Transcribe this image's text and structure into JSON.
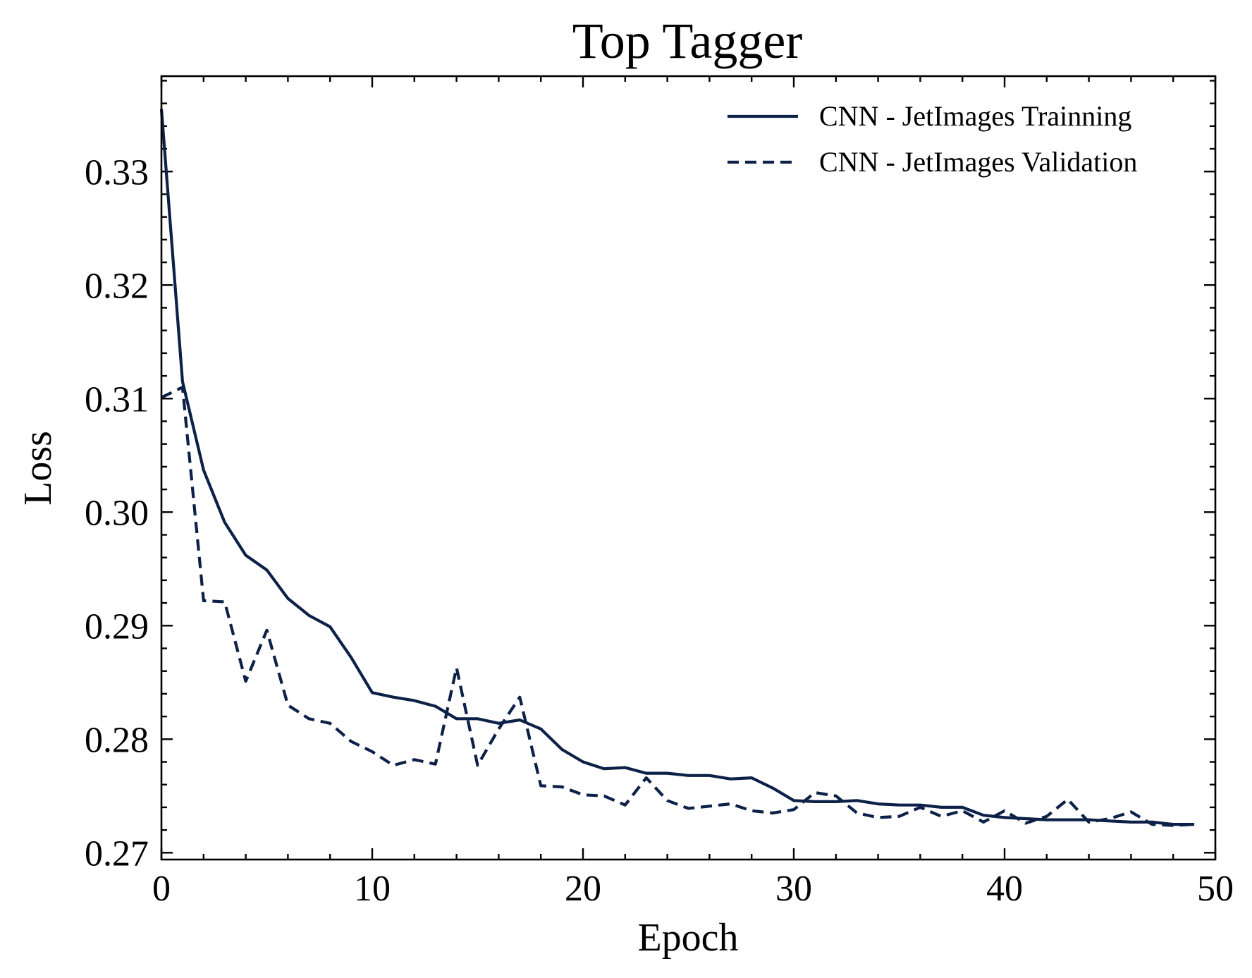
{
  "chart_data": {
    "type": "line",
    "title": "Top Tagger",
    "xlabel": "Epoch",
    "ylabel": "Loss",
    "xlim": [
      0,
      50
    ],
    "ylim": [
      0.2694,
      0.3384
    ],
    "x_ticks": [
      0,
      10,
      20,
      30,
      40,
      50
    ],
    "x_tick_labels": [
      "0",
      "10",
      "20",
      "30",
      "40",
      "50"
    ],
    "y_ticks": [
      0.27,
      0.28,
      0.29,
      0.3,
      0.31,
      0.32,
      0.33
    ],
    "y_tick_labels": [
      "0.27",
      "0.28",
      "0.29",
      "0.30",
      "0.31",
      "0.32",
      "0.33"
    ],
    "grid": false,
    "legend_position": "top-right",
    "x": [
      0,
      1,
      2,
      3,
      4,
      5,
      6,
      7,
      8,
      9,
      10,
      11,
      12,
      13,
      14,
      15,
      16,
      17,
      18,
      19,
      20,
      21,
      22,
      23,
      24,
      25,
      26,
      27,
      28,
      29,
      30,
      31,
      32,
      33,
      34,
      35,
      36,
      37,
      38,
      39,
      40,
      41,
      42,
      43,
      44,
      45,
      46,
      47,
      48,
      49
    ],
    "series": [
      {
        "name": "CNN - JetImages Trainning",
        "style": "solid",
        "color": "#0d2148",
        "values": [
          0.3355,
          0.3115,
          0.3037,
          0.2991,
          0.2962,
          0.2949,
          0.2924,
          0.2909,
          0.2899,
          0.2872,
          0.2841,
          0.2837,
          0.2834,
          0.2829,
          0.2818,
          0.2818,
          0.2814,
          0.2817,
          0.2809,
          0.2791,
          0.278,
          0.2774,
          0.2775,
          0.277,
          0.277,
          0.2768,
          0.2768,
          0.2765,
          0.2766,
          0.2757,
          0.2746,
          0.2745,
          0.2745,
          0.2746,
          0.2743,
          0.2742,
          0.2742,
          0.274,
          0.274,
          0.2733,
          0.2731,
          0.273,
          0.2729,
          0.2729,
          0.2729,
          0.2728,
          0.2727,
          0.2727,
          0.2725,
          0.2725
        ]
      },
      {
        "name": "CNN - JetImages Validation",
        "style": "dashed",
        "color": "#0d2148",
        "values": [
          0.3101,
          0.311,
          0.2922,
          0.2921,
          0.2851,
          0.2896,
          0.283,
          0.2818,
          0.2814,
          0.2798,
          0.2789,
          0.2777,
          0.2782,
          0.2778,
          0.2863,
          0.2777,
          0.2809,
          0.2837,
          0.2759,
          0.2758,
          0.2751,
          0.275,
          0.2742,
          0.2766,
          0.2746,
          0.2739,
          0.2741,
          0.2743,
          0.2737,
          0.2735,
          0.2738,
          0.2753,
          0.275,
          0.2735,
          0.2731,
          0.2732,
          0.274,
          0.2732,
          0.2737,
          0.2727,
          0.2737,
          0.2726,
          0.2732,
          0.2747,
          0.2727,
          0.273,
          0.2736,
          0.2725,
          0.2724,
          0.2725
        ]
      }
    ]
  }
}
